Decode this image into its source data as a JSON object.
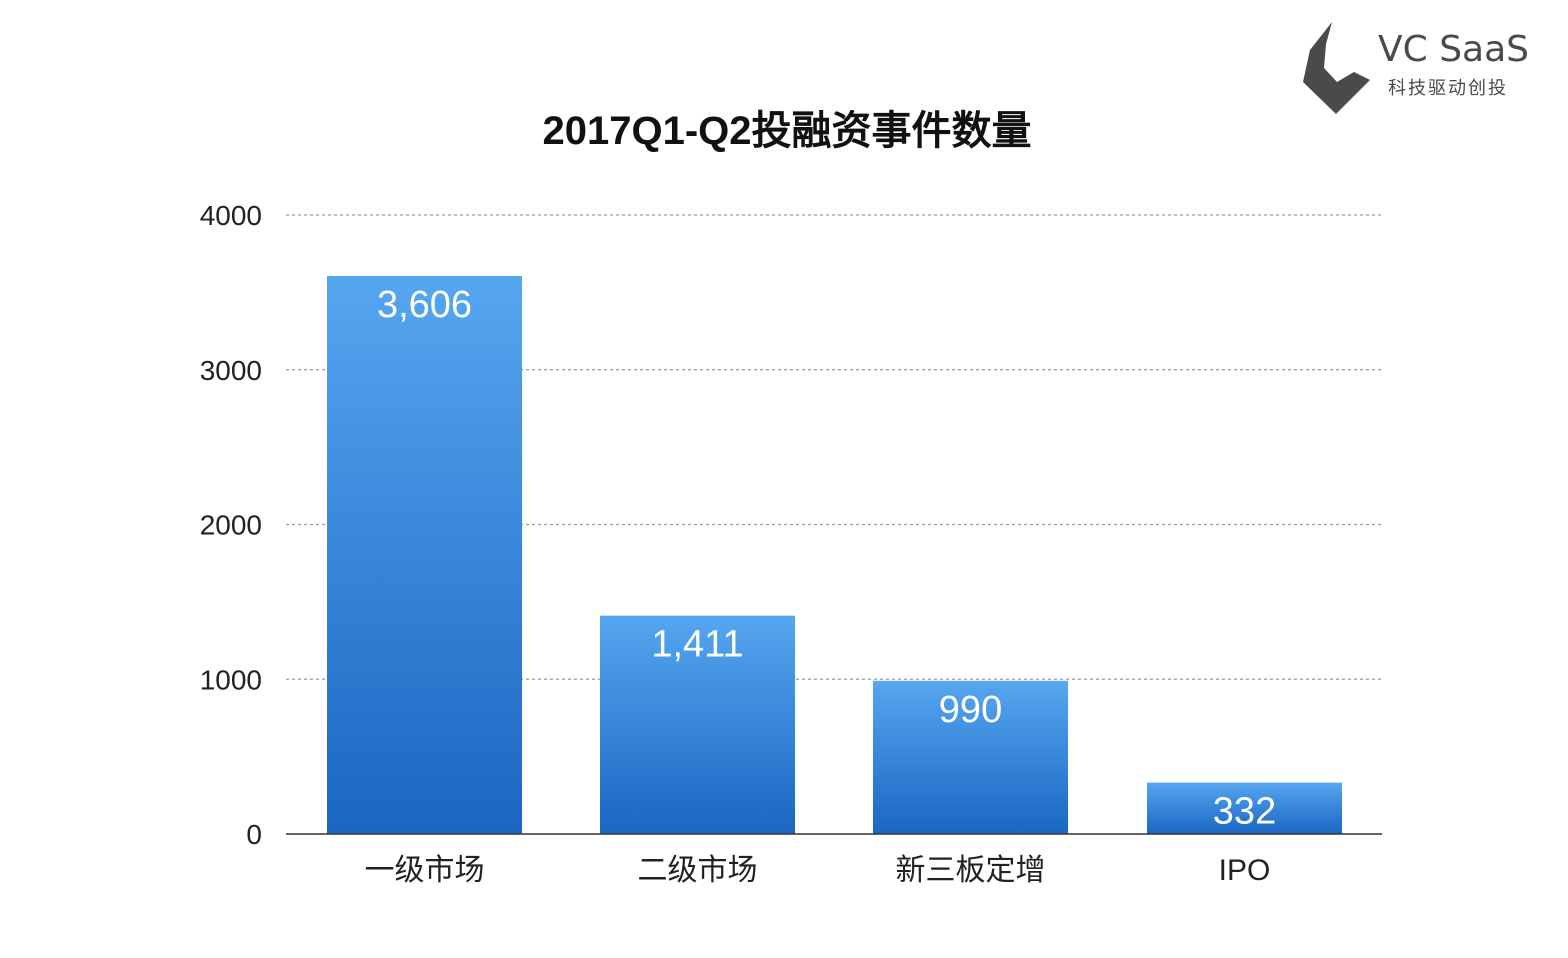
{
  "logo": {
    "name": "VC SaaS",
    "tagline": "科技驱动创投",
    "color": "#4a4a4a",
    "icon": "location-pin-c-icon"
  },
  "chart_data": {
    "type": "bar",
    "title": "2017Q1-Q2投融资事件数量",
    "categories": [
      "一级市场",
      "二级市场",
      "新三板定增",
      "IPO"
    ],
    "values": [
      3606,
      1411,
      990,
      332
    ],
    "value_labels": [
      "3,606",
      "1,411",
      "990",
      "332"
    ],
    "ylim": [
      0,
      4000
    ],
    "yticks": [
      0,
      1000,
      2000,
      3000,
      4000
    ],
    "xlabel": "",
    "ylabel": "",
    "grid": true,
    "legend": "none",
    "colors": {
      "bar_top": "#56a6f0",
      "bar_bottom": "#1a66c2",
      "grid": "#9a9a9a"
    }
  }
}
